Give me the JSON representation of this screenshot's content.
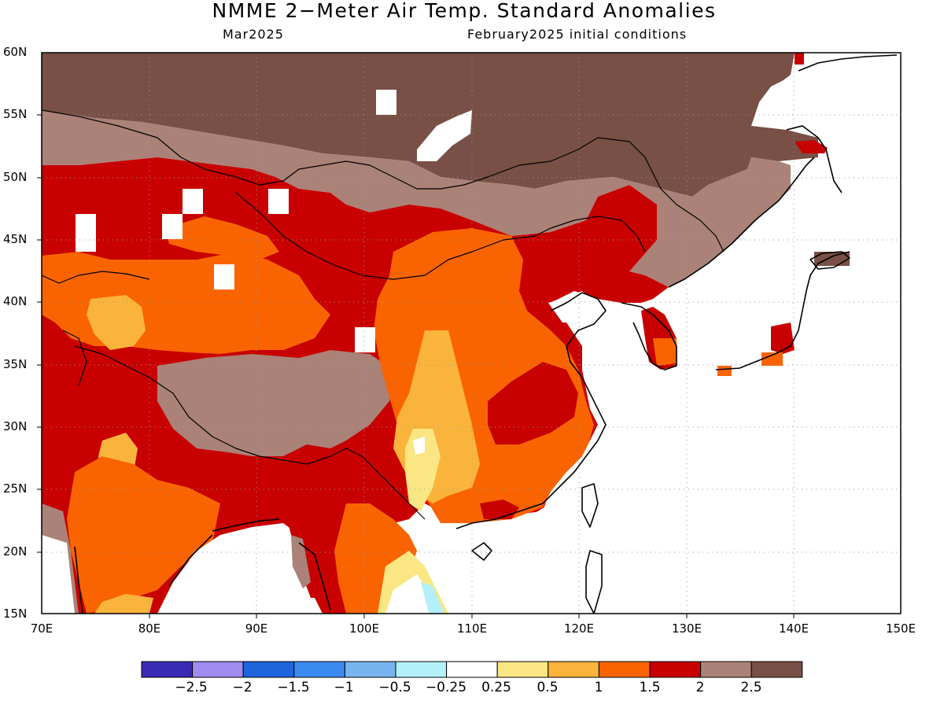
{
  "title": "NMME 2−Meter Air Temp. Standard Anomalies",
  "valid_month": "Mar2025",
  "initial_conditions": "February2025 initial conditions",
  "lat_labels": [
    "60N",
    "55N",
    "50N",
    "45N",
    "40N",
    "35N",
    "30N",
    "25N",
    "20N",
    "15N"
  ],
  "lon_labels": [
    "70E",
    "80E",
    "90E",
    "100E",
    "110E",
    "120E",
    "130E",
    "140E",
    "150E"
  ],
  "colorbar": {
    "labels": [
      "−2.5",
      "−2",
      "−1.5",
      "−1",
      "−0.5",
      "−0.25",
      "0.25",
      "0.5",
      "1",
      "1.5",
      "2",
      "2.5"
    ],
    "colors": [
      "#3a2bb5",
      "#a08cf0",
      "#1e64dc",
      "#3c8cf0",
      "#78b4f0",
      "#b4f0fa",
      "#ffffff",
      "#fae682",
      "#fab43c",
      "#fa6400",
      "#c80000",
      "#aa8278",
      "#785046"
    ]
  },
  "map_extent": {
    "lon": [
      70,
      150
    ],
    "lat": [
      15,
      60
    ]
  }
}
